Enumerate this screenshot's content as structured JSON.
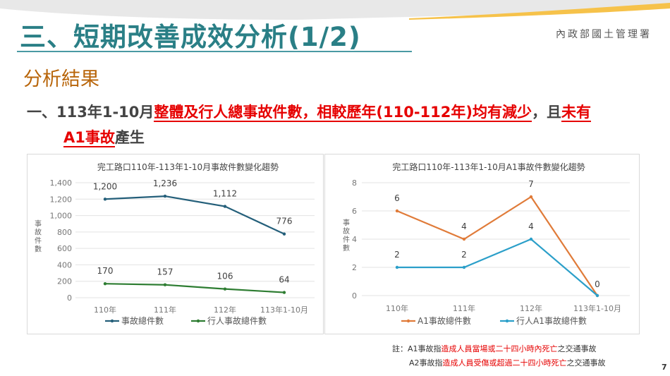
{
  "header": {
    "title": "三、短期改善成效分析(1/2)",
    "org": "內政部國土管理署",
    "subheading": "分析結果"
  },
  "bullet": {
    "prefix": "一、113年1-10月",
    "highlight1": "整體及行人總事故件數，相較歷年(110-112年)均有減少",
    "middle": "，且",
    "highlight2a": "未有",
    "highlight2b": "A1事故",
    "suffix": "產生"
  },
  "notes": {
    "label": "註：",
    "a1_prefix": "A1事故指",
    "a1_red": "造成人員當場或二十四小時內死亡",
    "a1_suffix": "之交通事故",
    "a2_prefix": "A2事故指",
    "a2_red": "造成人員受傷或超過二十四小時死亡",
    "a2_suffix": "之交通事故"
  },
  "page_number": "7",
  "colors": {
    "title": "#2a7f86",
    "subheading": "#b8650a",
    "highlight": "#e60000"
  },
  "chart_data": [
    {
      "type": "line",
      "title": "完工路口110年-113年1-10月事故件數變化趨勢",
      "ylabel": "事故件數",
      "categories": [
        "110年",
        "111年",
        "112年",
        "113年1-10月"
      ],
      "ylim": [
        0,
        1400
      ],
      "yticks": [
        "0",
        "200",
        "400",
        "600",
        "800",
        "1,000",
        "1,200",
        "1,400"
      ],
      "ytick_values": [
        0,
        200,
        400,
        600,
        800,
        1000,
        1200,
        1400
      ],
      "grid": true,
      "legend": "bottom",
      "series": [
        {
          "name": "事故總件數",
          "values": [
            1200,
            1236,
            1112,
            776
          ],
          "labels": [
            "1,200",
            "1,236",
            "1,112",
            "776"
          ],
          "color": "#245f7a"
        },
        {
          "name": "行人事故總件數",
          "values": [
            170,
            157,
            106,
            64
          ],
          "labels": [
            "170",
            "157",
            "106",
            "64"
          ],
          "color": "#2e7d32"
        }
      ]
    },
    {
      "type": "line",
      "title": "完工路口110年-113年1-10月A1事故件數變化趨勢",
      "ylabel": "事故件數",
      "categories": [
        "110年",
        "111年",
        "112年",
        "113年1-10月"
      ],
      "ylim": [
        0,
        8
      ],
      "yticks": [
        "0",
        "2",
        "4",
        "6",
        "8"
      ],
      "ytick_values": [
        0,
        2,
        4,
        6,
        8
      ],
      "grid": true,
      "legend": "bottom",
      "series": [
        {
          "name": "A1事故總件數",
          "values": [
            6,
            4,
            7,
            0
          ],
          "labels": [
            "6",
            "4",
            "7",
            ""
          ],
          "color": "#e07b39"
        },
        {
          "name": "行人A1事故總件數",
          "values": [
            2,
            2,
            4,
            0
          ],
          "labels": [
            "2",
            "2",
            "4",
            "0"
          ],
          "color": "#2b9fc9"
        }
      ]
    }
  ]
}
